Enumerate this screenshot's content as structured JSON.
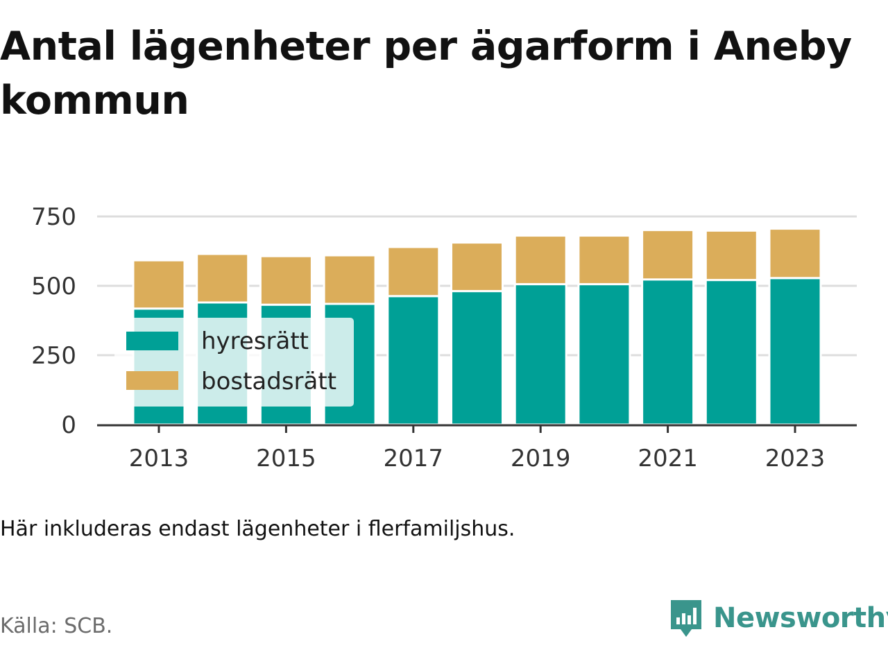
{
  "title": "Antal lägenheter per ägarform i Aneby kommun",
  "note": "Här inkluderas endast lägenheter i flerfamiljshus.",
  "source": "Källa: SCB.",
  "brand": {
    "name": "Newsworthy",
    "icon": "newsworthy-logo-icon"
  },
  "colors": {
    "hyresratt": "#00a096",
    "bostadsratt": "#dbad5a",
    "axis": "#333333",
    "grid": "#dddddd"
  },
  "chart_data": {
    "type": "bar",
    "stacked": true,
    "x": [
      2013,
      2014,
      2015,
      2016,
      2017,
      2018,
      2019,
      2020,
      2021,
      2022,
      2023
    ],
    "x_tick_labels": [
      "2013",
      "2015",
      "2017",
      "2019",
      "2021",
      "2023"
    ],
    "series": [
      {
        "name": "hyresrätt",
        "color": "#00a096",
        "values": [
          418,
          440,
          432,
          435,
          463,
          481,
          506,
          506,
          523,
          521,
          528
        ]
      },
      {
        "name": "bostadsrätt",
        "color": "#dbad5a",
        "values": [
          174,
          175,
          175,
          175,
          177,
          175,
          175,
          175,
          178,
          178,
          178
        ]
      }
    ],
    "y_ticks": [
      0,
      250,
      500,
      750
    ],
    "ylim": [
      0,
      750
    ],
    "grid": true,
    "legend": "inside-left"
  }
}
